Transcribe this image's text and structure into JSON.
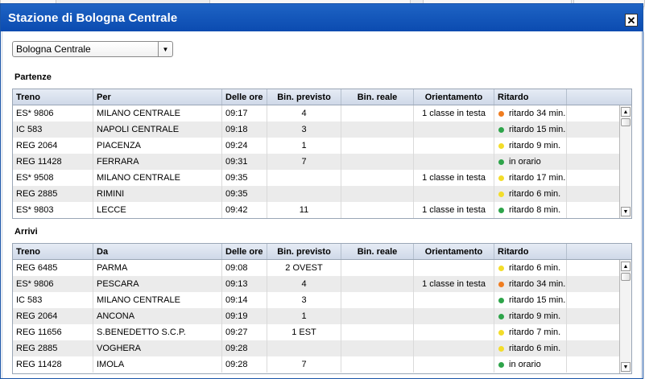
{
  "dialog": {
    "title": "Stazione di Bologna Centrale"
  },
  "station_select": {
    "value": "Bologna Centrale"
  },
  "colors": {
    "orange": "#f07d20",
    "green": "#2ea44a",
    "yellow": "#f3dd2a",
    "title_bar": "#0b4bb0"
  },
  "departures": {
    "section_title": "Partenze",
    "headers": [
      "Treno",
      "Per",
      "Delle ore",
      "Bin. previsto",
      "Bin. reale",
      "Orientamento",
      "Ritardo"
    ],
    "rows": [
      {
        "treno": "ES* 9806",
        "dest": "MILANO CENTRALE",
        "ore": "09:17",
        "bin_previsto": "4",
        "bin_reale": "",
        "orientamento": "1 classe in testa",
        "ritardo": "ritardo 34 min.",
        "status_color": "orange"
      },
      {
        "treno": "IC 583",
        "dest": "NAPOLI CENTRALE",
        "ore": "09:18",
        "bin_previsto": "3",
        "bin_reale": "",
        "orientamento": "",
        "ritardo": "ritardo 15 min.",
        "status_color": "green"
      },
      {
        "treno": "REG 2064",
        "dest": "PIACENZA",
        "ore": "09:24",
        "bin_previsto": "1",
        "bin_reale": "",
        "orientamento": "",
        "ritardo": "ritardo 9 min.",
        "status_color": "yellow"
      },
      {
        "treno": "REG 11428",
        "dest": "FERRARA",
        "ore": "09:31",
        "bin_previsto": "7",
        "bin_reale": "",
        "orientamento": "",
        "ritardo": "in orario",
        "status_color": "green"
      },
      {
        "treno": "ES* 9508",
        "dest": "MILANO CENTRALE",
        "ore": "09:35",
        "bin_previsto": "",
        "bin_reale": "",
        "orientamento": "1 classe in testa",
        "ritardo": "ritardo 17 min.",
        "status_color": "yellow"
      },
      {
        "treno": "REG 2885",
        "dest": "RIMINI",
        "ore": "09:35",
        "bin_previsto": "",
        "bin_reale": "",
        "orientamento": "",
        "ritardo": "ritardo 6 min.",
        "status_color": "yellow"
      },
      {
        "treno": "ES* 9803",
        "dest": "LECCE",
        "ore": "09:42",
        "bin_previsto": "11",
        "bin_reale": "",
        "orientamento": "1 classe in testa",
        "ritardo": "ritardo 8 min.",
        "status_color": "green"
      }
    ]
  },
  "arrivals": {
    "section_title": "Arrivi",
    "headers": [
      "Treno",
      "Da",
      "Delle ore",
      "Bin. previsto",
      "Bin. reale",
      "Orientamento",
      "Ritardo"
    ],
    "rows": [
      {
        "treno": "REG 6485",
        "dest": "PARMA",
        "ore": "09:08",
        "bin_previsto": "2 OVEST",
        "bin_reale": "",
        "orientamento": "",
        "ritardo": "ritardo 6 min.",
        "status_color": "yellow"
      },
      {
        "treno": "ES* 9806",
        "dest": "PESCARA",
        "ore": "09:13",
        "bin_previsto": "4",
        "bin_reale": "",
        "orientamento": "1 classe in testa",
        "ritardo": "ritardo 34 min.",
        "status_color": "orange"
      },
      {
        "treno": "IC 583",
        "dest": "MILANO CENTRALE",
        "ore": "09:14",
        "bin_previsto": "3",
        "bin_reale": "",
        "orientamento": "",
        "ritardo": "ritardo 15 min.",
        "status_color": "green"
      },
      {
        "treno": "REG 2064",
        "dest": "ANCONA",
        "ore": "09:19",
        "bin_previsto": "1",
        "bin_reale": "",
        "orientamento": "",
        "ritardo": "ritardo 9 min.",
        "status_color": "green"
      },
      {
        "treno": "REG 11656",
        "dest": "S.BENEDETTO S.C.P.",
        "ore": "09:27",
        "bin_previsto": "1 EST",
        "bin_reale": "",
        "orientamento": "",
        "ritardo": "ritardo 7 min.",
        "status_color": "yellow"
      },
      {
        "treno": "REG 2885",
        "dest": "VOGHERA",
        "ore": "09:28",
        "bin_previsto": "",
        "bin_reale": "",
        "orientamento": "",
        "ritardo": "ritardo 6 min.",
        "status_color": "yellow"
      },
      {
        "treno": "REG 11428",
        "dest": "IMOLA",
        "ore": "09:28",
        "bin_previsto": "7",
        "bin_reale": "",
        "orientamento": "",
        "ritardo": "in orario",
        "status_color": "green"
      }
    ]
  }
}
